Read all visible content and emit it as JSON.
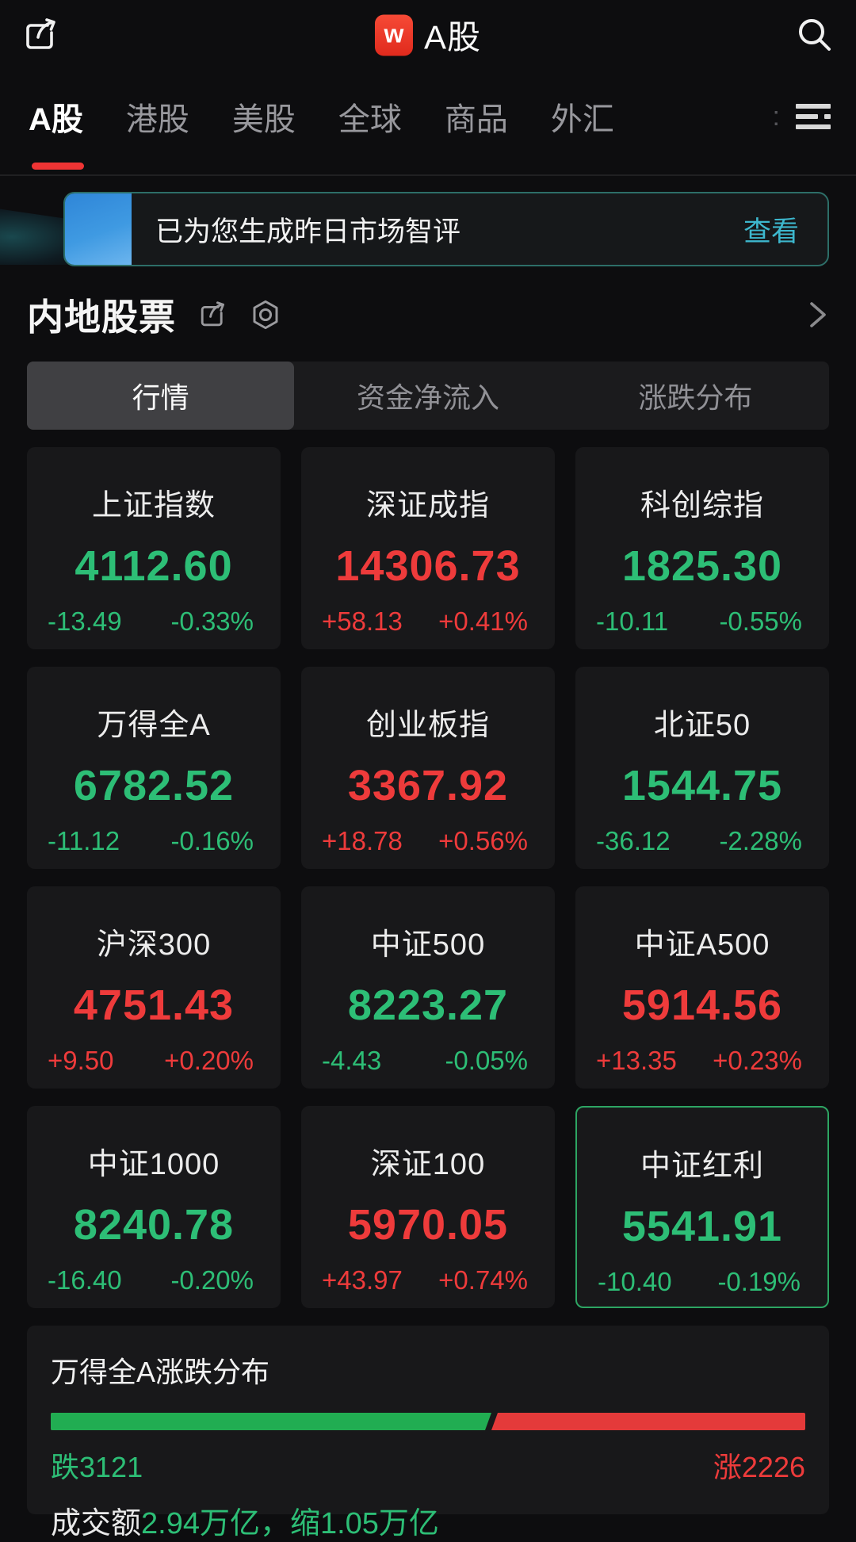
{
  "header": {
    "title": "A股",
    "logo_letter": "w"
  },
  "tabs": {
    "items": [
      {
        "label": "A股",
        "active": true
      },
      {
        "label": "港股",
        "active": false
      },
      {
        "label": "美股",
        "active": false
      },
      {
        "label": "全球",
        "active": false
      },
      {
        "label": "商品",
        "active": false
      },
      {
        "label": "外汇",
        "active": false
      }
    ]
  },
  "banner": {
    "text": "已为您生成昨日市场智评",
    "action": "查看"
  },
  "section": {
    "title": "内地股票"
  },
  "subtabs": {
    "items": [
      {
        "label": "行情",
        "active": true
      },
      {
        "label": "资金净流入",
        "active": false
      },
      {
        "label": "涨跌分布",
        "active": false
      }
    ]
  },
  "indices": [
    {
      "name": "上证指数",
      "value": "4112.60",
      "change": "-13.49",
      "pct": "-0.33%",
      "dir": "down",
      "highlighted": false
    },
    {
      "name": "深证成指",
      "value": "14306.73",
      "change": "+58.13",
      "pct": "+0.41%",
      "dir": "up",
      "highlighted": false
    },
    {
      "name": "科创综指",
      "value": "1825.30",
      "change": "-10.11",
      "pct": "-0.55%",
      "dir": "down",
      "highlighted": false
    },
    {
      "name": "万得全A",
      "value": "6782.52",
      "change": "-11.12",
      "pct": "-0.16%",
      "dir": "down",
      "highlighted": false
    },
    {
      "name": "创业板指",
      "value": "3367.92",
      "change": "+18.78",
      "pct": "+0.56%",
      "dir": "up",
      "highlighted": false
    },
    {
      "name": "北证50",
      "value": "1544.75",
      "change": "-36.12",
      "pct": "-2.28%",
      "dir": "down",
      "highlighted": false
    },
    {
      "name": "沪深300",
      "value": "4751.43",
      "change": "+9.50",
      "pct": "+0.20%",
      "dir": "up",
      "highlighted": false
    },
    {
      "name": "中证500",
      "value": "8223.27",
      "change": "-4.43",
      "pct": "-0.05%",
      "dir": "down",
      "highlighted": false
    },
    {
      "name": "中证A500",
      "value": "5914.56",
      "change": "+13.35",
      "pct": "+0.23%",
      "dir": "up",
      "highlighted": false
    },
    {
      "name": "中证1000",
      "value": "8240.78",
      "change": "-16.40",
      "pct": "-0.20%",
      "dir": "down",
      "highlighted": false
    },
    {
      "name": "深证100",
      "value": "5970.05",
      "change": "+43.97",
      "pct": "+0.74%",
      "dir": "up",
      "highlighted": false
    },
    {
      "name": "中证红利",
      "value": "5541.91",
      "change": "-10.40",
      "pct": "-0.19%",
      "dir": "down",
      "highlighted": true
    }
  ],
  "distribution": {
    "title": "万得全A涨跌分布",
    "down_label": "跌3121",
    "up_label": "涨2226",
    "down_count": 3121,
    "up_count": 2226,
    "green_pct": 58.4,
    "turnover_prefix": "成交额",
    "turnover_value": "2.94万亿，缩1.05万亿"
  },
  "colors": {
    "up_red": "#ee3b3b",
    "down_green": "#2dbe76",
    "bar_green": "#21ad52",
    "bar_red": "#e43a3a",
    "accent_teal": "#3db7cd",
    "tab_underline": "#ef3434",
    "highlight_border": "#2da563",
    "logo_red": "#ee3a2e"
  }
}
